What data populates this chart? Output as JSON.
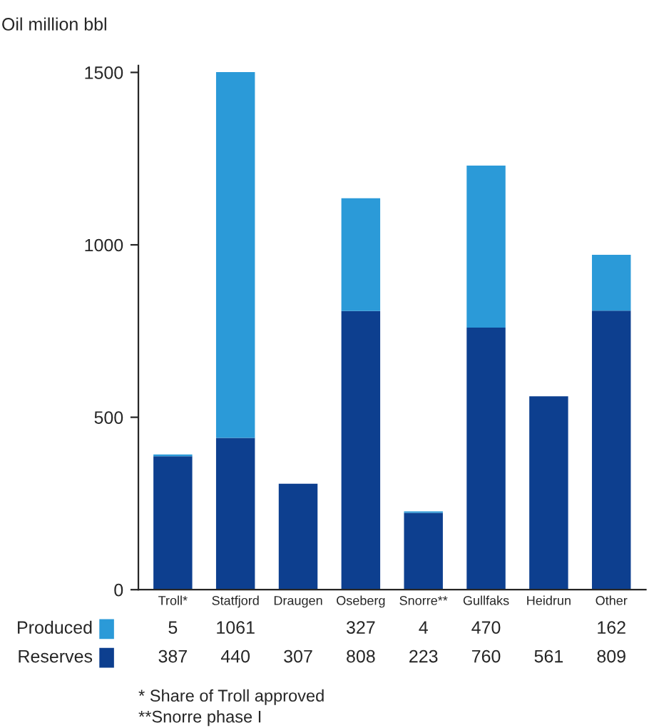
{
  "chart_data": {
    "type": "bar",
    "stacked": true,
    "ylabel": "Oil million bbl",
    "categories": [
      "Troll*",
      "Statfjord",
      "Draugen",
      "Oseberg",
      "Snorre**",
      "Gullfaks",
      "Heidrun",
      "Other"
    ],
    "series": [
      {
        "name": "Reserves",
        "color": "#0d3f8f",
        "values": [
          387,
          440,
          307,
          808,
          223,
          760,
          561,
          809
        ],
        "value_labels": [
          "387",
          "440",
          "307",
          "808",
          "223",
          "760",
          "561",
          "809"
        ]
      },
      {
        "name": "Produced",
        "color": "#2b9ad8",
        "values": [
          5,
          1061,
          null,
          327,
          4,
          470,
          null,
          162
        ],
        "value_labels": [
          "5",
          "1061",
          null,
          "327",
          "4",
          "470",
          null,
          "162"
        ]
      }
    ],
    "ylim": [
      0,
      1520
    ],
    "yticks": [
      0,
      500,
      1000,
      1500
    ],
    "grid": false,
    "legend": "bottom left",
    "annotations": [
      "* Share of Troll approved",
      "**Snorre phase I"
    ]
  }
}
